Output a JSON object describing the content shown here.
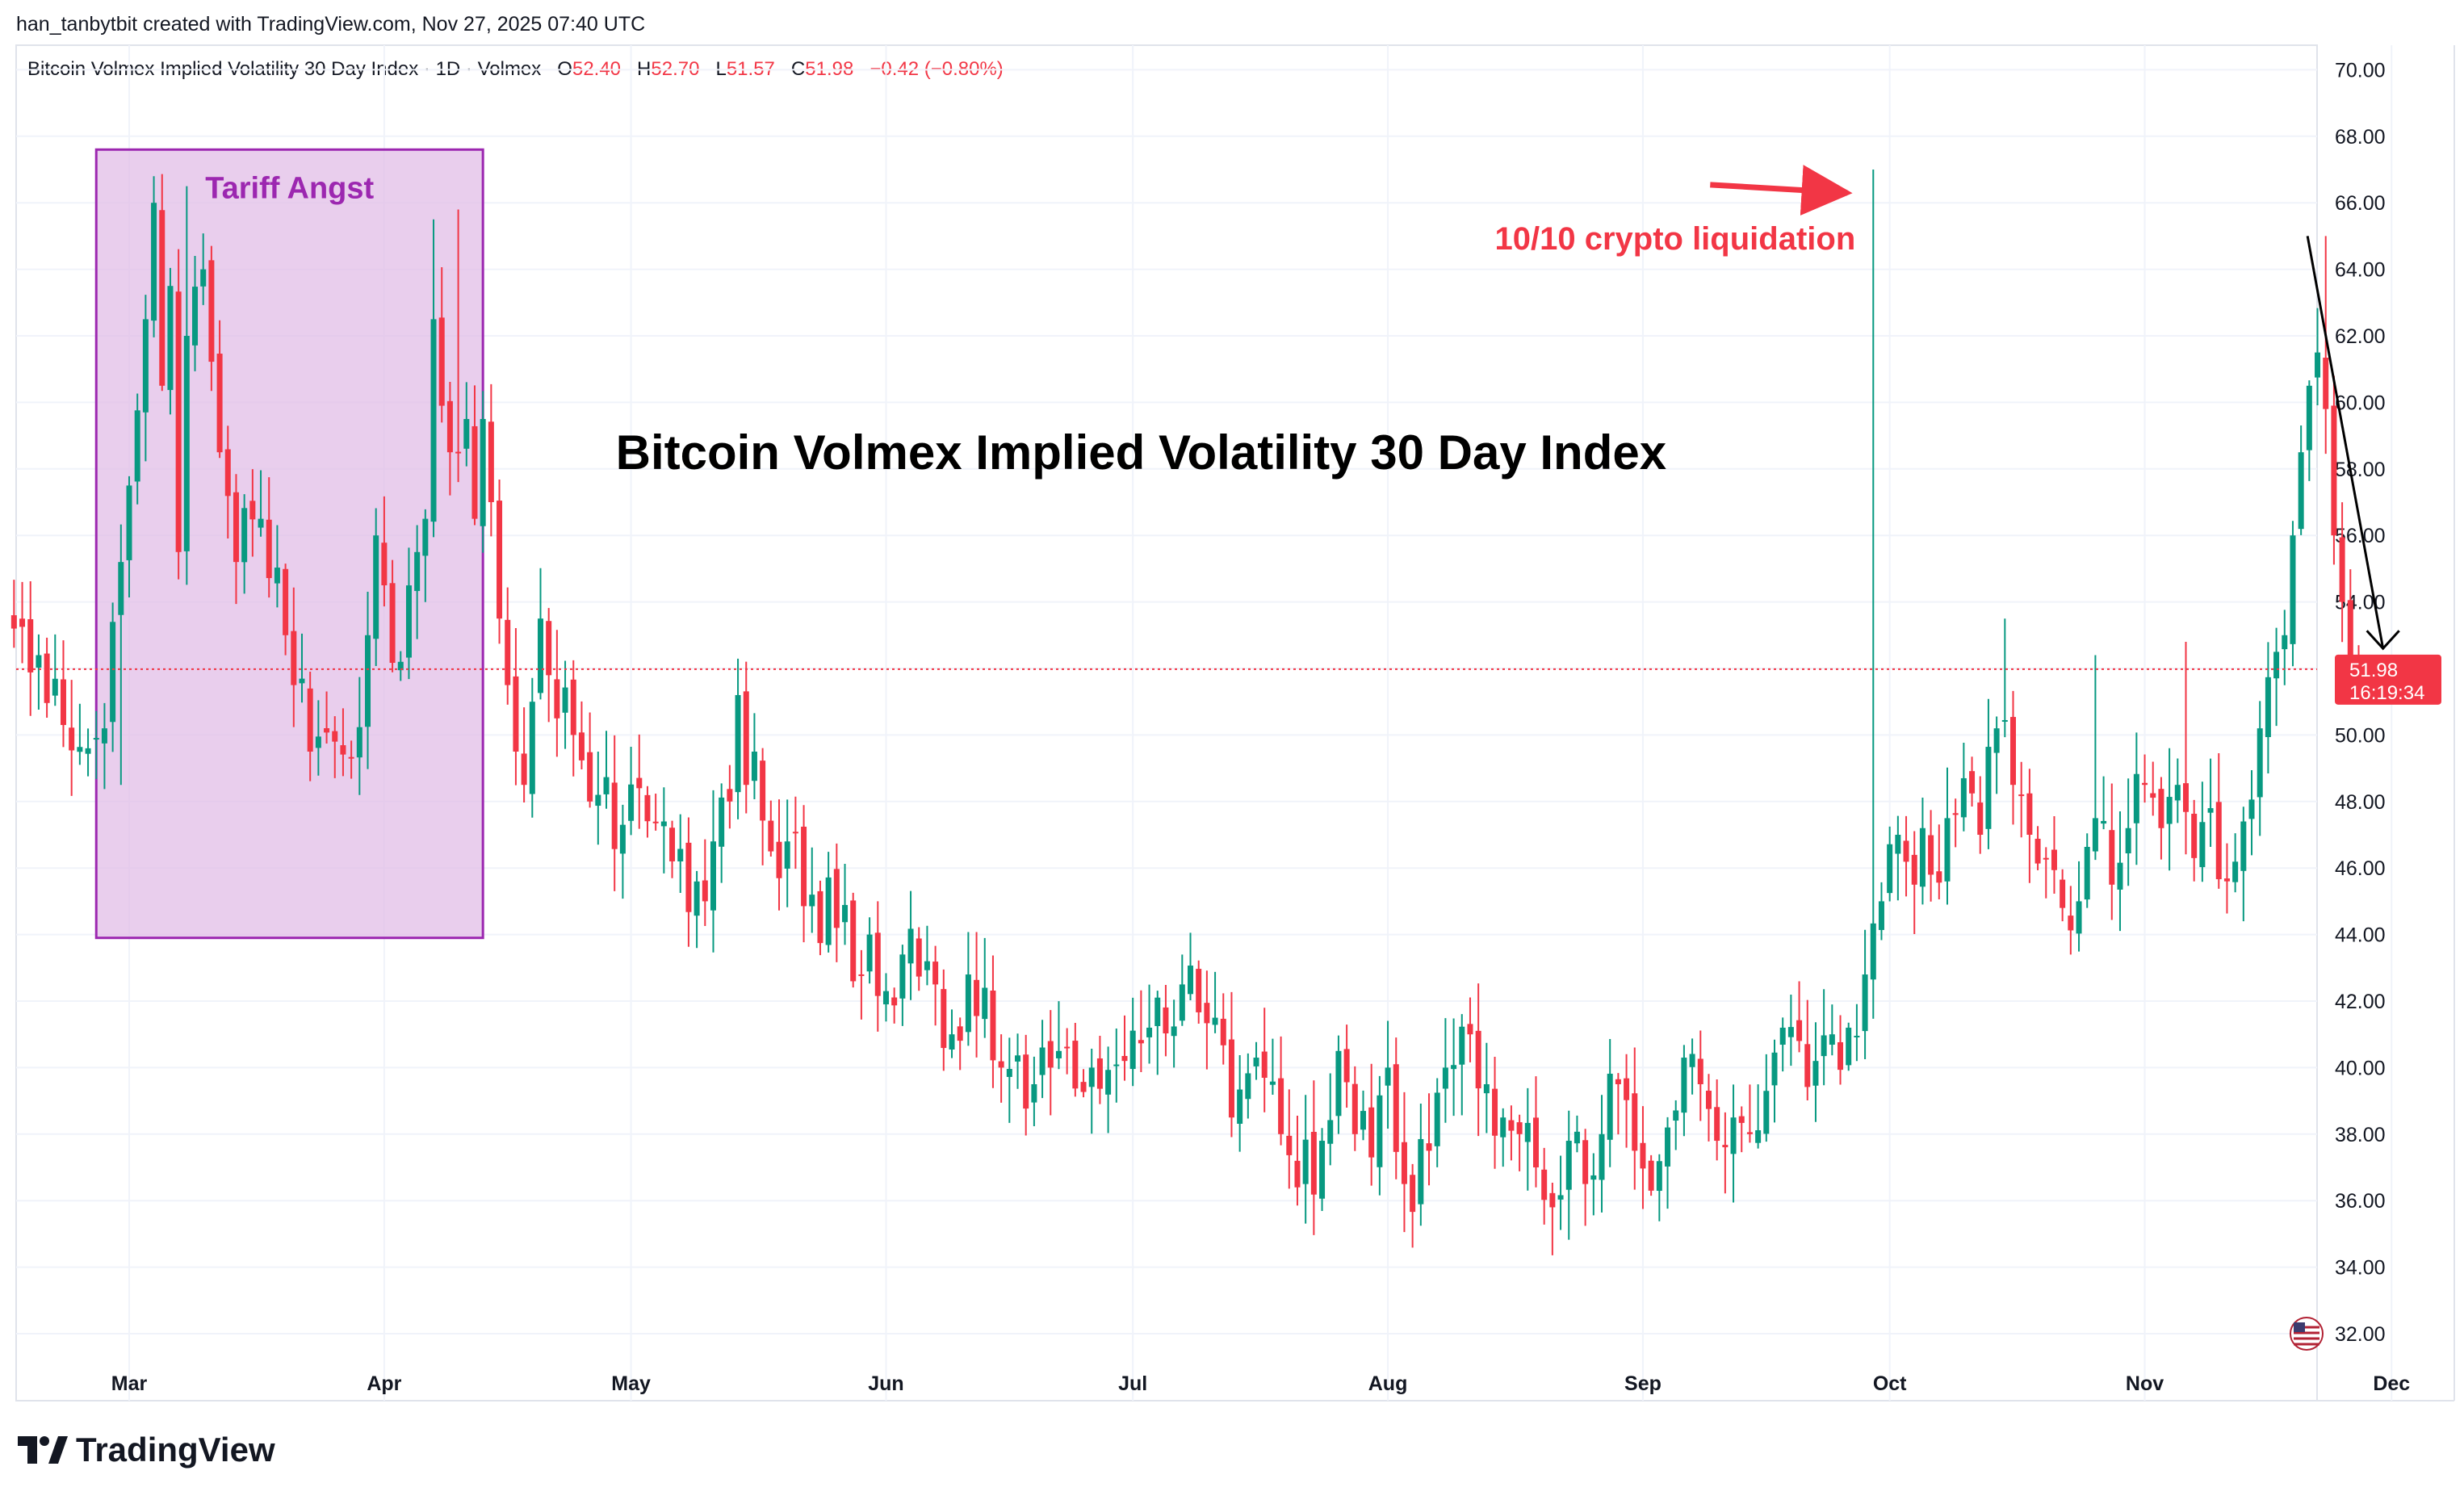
{
  "credit": "han_tanbytbit created with TradingView.com, Nov 27, 2025 07:40 UTC",
  "legend": {
    "symbol": "Bitcoin Volmex Implied Volatility 30 Day Index · 1D · Volmex",
    "o_label": "O",
    "o_value": "52.40",
    "h_label": "H",
    "h_value": "52.70",
    "l_label": "L",
    "l_value": "51.57",
    "c_label": "C",
    "c_value": "51.98",
    "change": "−0.42 (−0.80%)"
  },
  "brand": {
    "name": "TradingView"
  },
  "colors": {
    "up": "#089981",
    "down": "#f23645",
    "grid": "#f0f3fa",
    "box": "#9c27b0",
    "box_fill": "#e1bee7",
    "axis": "#131722"
  },
  "chart_data": {
    "type": "candlestick",
    "title": "Bitcoin Volmex Implied Volatility 30 Day Index",
    "interval": "1D",
    "ylim": [
      31,
      71
    ],
    "y_ticks": [
      "70.00",
      "68.00",
      "66.00",
      "64.00",
      "62.00",
      "60.00",
      "58.00",
      "56.00",
      "54.00",
      "52.00",
      "50.00",
      "48.00",
      "46.00",
      "44.00",
      "42.00",
      "40.00",
      "38.00",
      "36.00",
      "34.00",
      "32.00"
    ],
    "x_ticks": [
      {
        "label": "Mar",
        "day": 0
      },
      {
        "label": "Apr",
        "day": 31
      },
      {
        "label": "May",
        "day": 61
      },
      {
        "label": "Jun",
        "day": 92
      },
      {
        "label": "Jul",
        "day": 122
      },
      {
        "label": "Aug",
        "day": 153
      },
      {
        "label": "Sep",
        "day": 184
      },
      {
        "label": "Oct",
        "day": 214
      },
      {
        "label": "Nov",
        "day": 245
      },
      {
        "label": "Dec",
        "day": 275
      }
    ],
    "last_price": "51.98",
    "countdown": "16:19:34",
    "anchors": [
      {
        "day": -14,
        "v": 53.2
      },
      {
        "day": -11,
        "v": 52.4
      },
      {
        "day": -8,
        "v": 50.3
      },
      {
        "day": -5,
        "v": 49.6
      },
      {
        "day": -3,
        "v": 50.2
      },
      {
        "day": -2,
        "v": 53.4
      },
      {
        "day": -1,
        "v": 55.2
      },
      {
        "day": 0,
        "v": 57.5
      },
      {
        "day": 2,
        "v": 62.5
      },
      {
        "day": 3,
        "v": 66.0
      },
      {
        "day": 4,
        "v": 60.5
      },
      {
        "day": 5,
        "v": 63.5
      },
      {
        "day": 6,
        "v": 55.5
      },
      {
        "day": 7,
        "v": 62.0
      },
      {
        "day": 9,
        "v": 64.0
      },
      {
        "day": 11,
        "v": 58.5
      },
      {
        "day": 13,
        "v": 55.2
      },
      {
        "day": 16,
        "v": 56.5
      },
      {
        "day": 19,
        "v": 53.0
      },
      {
        "day": 20,
        "v": 51.5
      },
      {
        "day": 22,
        "v": 49.5
      },
      {
        "day": 25,
        "v": 49.8
      },
      {
        "day": 27,
        "v": 49.3
      },
      {
        "day": 29,
        "v": 53.0
      },
      {
        "day": 30,
        "v": 56.0
      },
      {
        "day": 31,
        "v": 54.5
      },
      {
        "day": 33,
        "v": 52.2
      },
      {
        "day": 35,
        "v": 55.5
      },
      {
        "day": 36,
        "v": 56.5
      },
      {
        "day": 37,
        "v": 62.5
      },
      {
        "day": 39,
        "v": 58.5
      },
      {
        "day": 41,
        "v": 59.5
      },
      {
        "day": 42,
        "v": 56.5
      },
      {
        "day": 43,
        "v": 59.5
      },
      {
        "day": 44,
        "v": 57.0
      },
      {
        "day": 45,
        "v": 53.5
      },
      {
        "day": 46,
        "v": 51.5
      },
      {
        "day": 47,
        "v": 49.5
      },
      {
        "day": 48,
        "v": 48.5
      },
      {
        "day": 49,
        "v": 51.0
      },
      {
        "day": 50,
        "v": 53.5
      },
      {
        "day": 52,
        "v": 50.5
      },
      {
        "day": 54,
        "v": 50.0
      },
      {
        "day": 56,
        "v": 48.0
      },
      {
        "day": 60,
        "v": 47.3
      },
      {
        "day": 62,
        "v": 48.4
      },
      {
        "day": 65,
        "v": 47.4
      },
      {
        "day": 66,
        "v": 46.2
      },
      {
        "day": 70,
        "v": 45.0
      },
      {
        "day": 71,
        "v": 46.8
      },
      {
        "day": 73,
        "v": 48.0
      },
      {
        "day": 74,
        "v": 51.2
      },
      {
        "day": 75,
        "v": 48.5
      },
      {
        "day": 76,
        "v": 49.5
      },
      {
        "day": 78,
        "v": 46.5
      },
      {
        "day": 80,
        "v": 46.8
      },
      {
        "day": 83,
        "v": 45.2
      },
      {
        "day": 86,
        "v": 44.2
      },
      {
        "day": 89,
        "v": 42.8
      },
      {
        "day": 90,
        "v": 44.0
      },
      {
        "day": 92,
        "v": 42.3
      },
      {
        "day": 94,
        "v": 43.4
      },
      {
        "day": 98,
        "v": 42.5
      },
      {
        "day": 100,
        "v": 41.0
      },
      {
        "day": 102,
        "v": 42.8
      },
      {
        "day": 104,
        "v": 42.4
      },
      {
        "day": 106,
        "v": 40.0
      },
      {
        "day": 110,
        "v": 39.5
      },
      {
        "day": 113,
        "v": 40.5
      },
      {
        "day": 117,
        "v": 40.0
      },
      {
        "day": 121,
        "v": 40.2
      },
      {
        "day": 124,
        "v": 41.2
      },
      {
        "day": 128,
        "v": 42.5
      },
      {
        "day": 132,
        "v": 41.5
      },
      {
        "day": 134,
        "v": 38.5
      },
      {
        "day": 137,
        "v": 40.3
      },
      {
        "day": 140,
        "v": 38.0
      },
      {
        "day": 142,
        "v": 36.4
      },
      {
        "day": 145,
        "v": 37.8
      },
      {
        "day": 147,
        "v": 40.5
      },
      {
        "day": 149,
        "v": 38.0
      },
      {
        "day": 151,
        "v": 37.3
      },
      {
        "day": 153,
        "v": 40.0
      },
      {
        "day": 155,
        "v": 36.5
      },
      {
        "day": 158,
        "v": 37.5
      },
      {
        "day": 160,
        "v": 40.0
      },
      {
        "day": 163,
        "v": 41.0
      },
      {
        "day": 165,
        "v": 39.5
      },
      {
        "day": 167,
        "v": 38.5
      },
      {
        "day": 169,
        "v": 38.0
      },
      {
        "day": 171,
        "v": 37.0
      },
      {
        "day": 173,
        "v": 35.8
      },
      {
        "day": 175,
        "v": 37.8
      },
      {
        "day": 177,
        "v": 36.5
      },
      {
        "day": 179,
        "v": 38.0
      },
      {
        "day": 181,
        "v": 39.5
      },
      {
        "day": 183,
        "v": 37.5
      },
      {
        "day": 185,
        "v": 36.3
      },
      {
        "day": 187,
        "v": 38.2
      },
      {
        "day": 189,
        "v": 40.3
      },
      {
        "day": 191,
        "v": 39.5
      },
      {
        "day": 193,
        "v": 37.8
      },
      {
        "day": 195,
        "v": 38.5
      },
      {
        "day": 197,
        "v": 38.0
      },
      {
        "day": 199,
        "v": 39.3
      },
      {
        "day": 201,
        "v": 41.2
      },
      {
        "day": 203,
        "v": 40.8
      },
      {
        "day": 205,
        "v": 40.2
      },
      {
        "day": 207,
        "v": 41.0
      },
      {
        "day": 209,
        "v": 41.2
      },
      {
        "day": 211,
        "v": 42.8
      },
      {
        "day": 213,
        "v": 45.0
      },
      {
        "day": 215,
        "v": 47.0
      },
      {
        "day": 217,
        "v": 45.5
      },
      {
        "day": 218,
        "v": 47.2
      },
      {
        "day": 219,
        "v": 45.8
      },
      {
        "day": 221,
        "v": 47.5
      },
      {
        "day": 223,
        "v": 48.7
      },
      {
        "day": 225,
        "v": 47.0
      },
      {
        "day": 227,
        "v": 50.2
      },
      {
        "day": 229,
        "v": 48.5
      },
      {
        "day": 231,
        "v": 47.0
      },
      {
        "day": 233,
        "v": 46.3
      },
      {
        "day": 235,
        "v": 44.8
      },
      {
        "day": 237,
        "v": 45.0
      },
      {
        "day": 239,
        "v": 47.5
      },
      {
        "day": 241,
        "v": 45.5
      },
      {
        "day": 243,
        "v": 47.2
      },
      {
        "day": 245,
        "v": 48.5
      },
      {
        "day": 247,
        "v": 47.2
      },
      {
        "day": 249,
        "v": 48.5
      },
      {
        "day": 251,
        "v": 46.3
      },
      {
        "day": 253,
        "v": 47.8
      },
      {
        "day": 255,
        "v": 45.6
      },
      {
        "day": 257,
        "v": 47.4
      },
      {
        "day": 259,
        "v": 50.2
      },
      {
        "day": 261,
        "v": 52.5
      },
      {
        "day": 262,
        "v": 53.0
      },
      {
        "day": 263,
        "v": 56.0
      },
      {
        "day": 264,
        "v": 58.5
      },
      {
        "day": 265,
        "v": 60.5
      },
      {
        "day": 266,
        "v": 61.5
      },
      {
        "day": 267,
        "v": 59.8
      },
      {
        "day": 268,
        "v": 56.0
      },
      {
        "day": 269,
        "v": 54.0
      },
      {
        "day": 270,
        "v": 52.4
      },
      {
        "day": 271,
        "v": 51.98
      }
    ],
    "events": [
      {
        "day": -1,
        "high": 55.5,
        "low": 48.5
      },
      {
        "day": 3,
        "high": 66.8
      },
      {
        "day": 7,
        "high": 66.5
      },
      {
        "day": 37,
        "high": 65.5
      },
      {
        "day": 40,
        "high": 65.8
      },
      {
        "day": 212,
        "high": 67.0
      },
      {
        "day": 213,
        "low": 44.3
      },
      {
        "day": 228,
        "high": 53.5
      },
      {
        "day": 239,
        "high": 52.4
      },
      {
        "day": 250,
        "high": 52.8
      },
      {
        "day": 267,
        "high": 65.0
      }
    ],
    "annotations": [
      {
        "text": "Tariff Angst",
        "type": "box",
        "day_from": -4,
        "day_to": 43,
        "v_from": 43.9,
        "v_to": 67.6
      },
      {
        "text": "10/10 crypto liquidation",
        "type": "arrow",
        "target_day": 212,
        "target_v": 66.3
      },
      {
        "text": "Bitcoin Volmex Implied Volatility 30 Day Index",
        "type": "label",
        "day": 123,
        "v": 58.0
      },
      {
        "text": "",
        "type": "arrow",
        "from_day": 264,
        "from_v": 65.0,
        "to_day": 272,
        "to_v": 52.6
      }
    ]
  }
}
